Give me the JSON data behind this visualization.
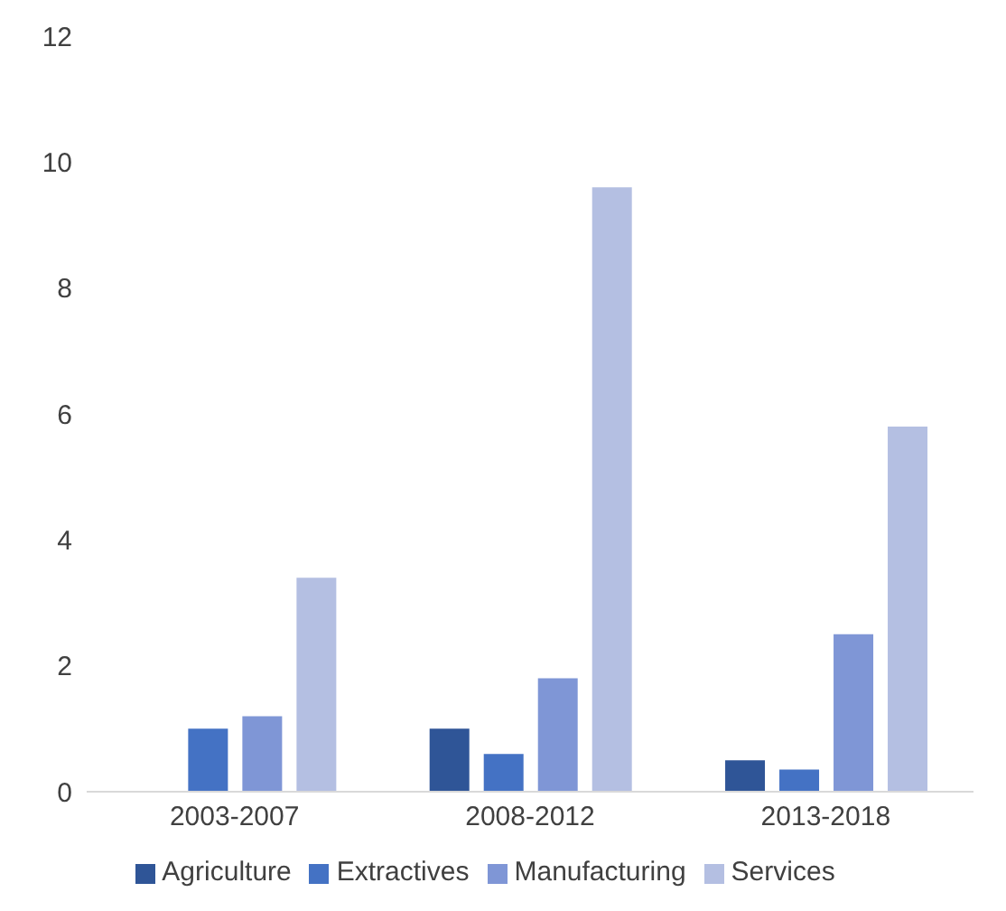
{
  "chart_data": {
    "type": "bar",
    "categories": [
      "2003-2007",
      "2008-2012",
      "2013-2018"
    ],
    "series": [
      {
        "name": "Agriculture",
        "color": "#2f5597",
        "values": [
          0,
          1.0,
          0.5
        ]
      },
      {
        "name": "Extractives",
        "color": "#4472c4",
        "values": [
          1.0,
          0.6,
          0.35
        ]
      },
      {
        "name": "Manufacturing",
        "color": "#7f96d6",
        "values": [
          1.2,
          1.8,
          2.5
        ]
      },
      {
        "name": "Services",
        "color": "#b4bfe2",
        "values": [
          3.4,
          9.6,
          5.8
        ]
      }
    ],
    "ylim": [
      0,
      12
    ],
    "yticks": [
      0,
      2,
      4,
      6,
      8,
      10,
      12
    ],
    "grid": false,
    "legend": "bottom"
  }
}
